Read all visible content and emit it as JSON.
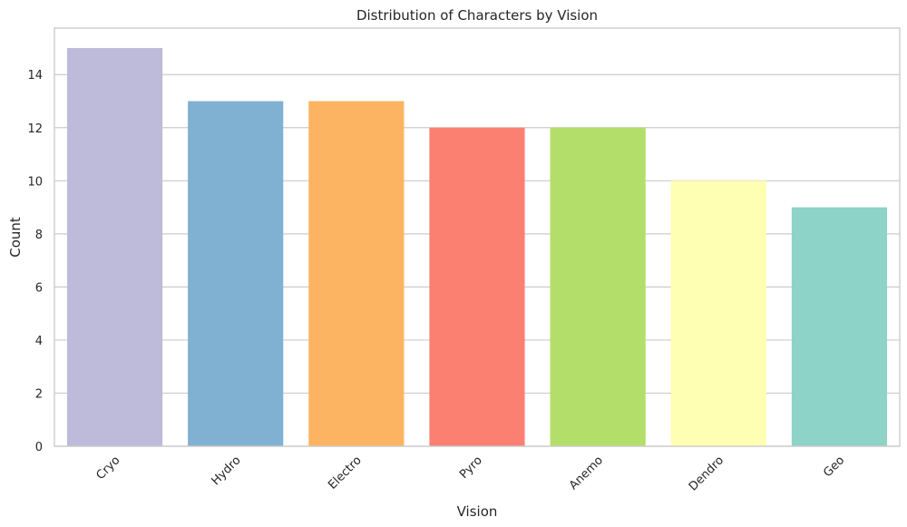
{
  "chart_data": {
    "type": "bar",
    "title": "Distribution of Characters by Vision",
    "xlabel": "Vision",
    "ylabel": "Count",
    "categories": [
      "Cryo",
      "Hydro",
      "Electro",
      "Pyro",
      "Anemo",
      "Dendro",
      "Geo"
    ],
    "values": [
      15,
      13,
      13,
      12,
      12,
      10,
      9
    ],
    "colors": [
      "#bebada",
      "#80b1d3",
      "#fdb462",
      "#fb8072",
      "#b3de69",
      "#ffffb3",
      "#8dd3c7"
    ],
    "ylim": [
      0,
      15.75
    ],
    "yticks": [
      0,
      2,
      4,
      6,
      8,
      10,
      12,
      14
    ],
    "grid": true,
    "xtick_rotation": -45
  }
}
